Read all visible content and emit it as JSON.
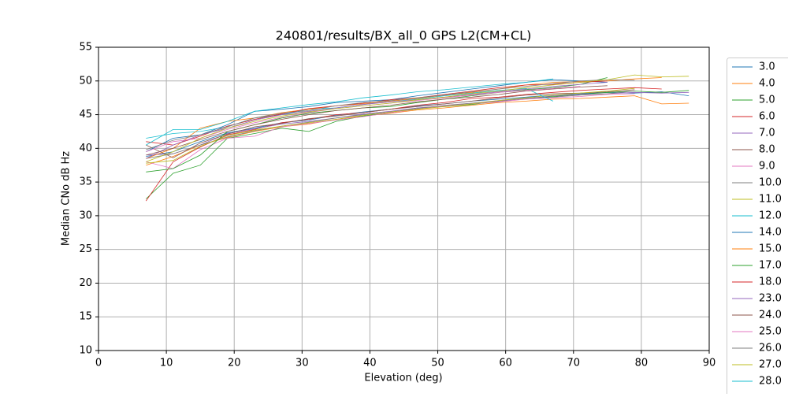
{
  "chart_data": {
    "type": "line",
    "title": "240801/results/BX_all_0 GPS L2(CM+CL)",
    "xlabel": "Elevation (deg)",
    "ylabel": "Median CNo dB Hz",
    "xlim": [
      0,
      90
    ],
    "ylim": [
      10,
      55
    ],
    "xticks": [
      0,
      10,
      20,
      30,
      40,
      50,
      60,
      70,
      80,
      90
    ],
    "yticks": [
      10,
      15,
      20,
      25,
      30,
      35,
      40,
      45,
      50,
      55
    ],
    "grid": true,
    "legend": "right",
    "x": [
      7,
      11,
      15,
      19,
      23,
      27,
      31,
      35,
      39,
      43,
      47,
      51,
      55,
      59,
      63,
      67,
      71,
      75,
      79,
      83,
      87
    ],
    "series": [
      {
        "name": "3.0",
        "color": "#1f77b4",
        "values": [
          38.8,
          39.5,
          41,
          42.3,
          43,
          43.8,
          44.2,
          44.9,
          45.4,
          45.8,
          46.3,
          46.6,
          47,
          47.3,
          47.6,
          47.9,
          48.1,
          48.3,
          48.2,
          48.4,
          47.8
        ]
      },
      {
        "name": "4.0",
        "color": "#ff7f0e",
        "values": [
          37.5,
          38.8,
          40.5,
          41.6,
          42.5,
          43.2,
          43.6,
          44.3,
          44.8,
          45.2,
          45.7,
          46,
          46.4,
          46.8,
          47,
          47.3,
          47.4,
          47.6,
          47.8,
          46.6,
          46.7
        ]
      },
      {
        "name": "5.0",
        "color": "#2ca02c",
        "values": [
          32.5,
          36.3,
          37.5,
          41.5,
          42.2,
          43,
          42.5,
          44,
          44.8,
          45.3,
          46,
          46.2,
          46.5,
          47,
          47.4,
          47.7,
          48,
          48.3,
          48.5,
          48.3,
          48.6
        ]
      },
      {
        "name": "6.0",
        "color": "#d62728",
        "values": [
          32.2,
          38,
          40.2,
          42,
          42.8,
          43.8,
          44.3,
          45,
          45.3,
          45.8,
          46.4,
          46.8,
          47.4,
          47.6,
          48,
          48.3,
          48.6,
          48.8,
          49,
          48.8,
          null
        ]
      },
      {
        "name": "7.0",
        "color": "#9467bd",
        "values": [
          39,
          39.2,
          40.5,
          42.2,
          42.9,
          43.6,
          44,
          44.5,
          45.1,
          45.5,
          46,
          46.3,
          46.7,
          47,
          47.4,
          47.8,
          48,
          48.1,
          48.3,
          48.2,
          48.3
        ]
      },
      {
        "name": "8.0",
        "color": "#8c564b",
        "values": [
          40.5,
          38.6,
          40.8,
          42.1,
          43.2,
          43.7,
          44.4,
          44.8,
          45.3,
          45.8,
          46.2,
          46.6,
          47,
          47.5,
          47.9,
          48.1,
          48.2,
          48.4,
          48.7,
          null,
          null
        ]
      },
      {
        "name": "9.0",
        "color": "#e377c2",
        "values": [
          38,
          37,
          39.8,
          41.5,
          41.8,
          43.2,
          43.7,
          44.2,
          44.7,
          45.3,
          45.8,
          46.3,
          46.6,
          46.9,
          47.3,
          47.5,
          47.7,
          48,
          48.1,
          null,
          null
        ]
      },
      {
        "name": "10.0",
        "color": "#7f7f7f",
        "values": [
          38.5,
          39.2,
          40.5,
          41.7,
          42.6,
          43.3,
          43.9,
          44.5,
          45,
          45.4,
          45.9,
          46.4,
          46.7,
          47.1,
          47.4,
          47.6,
          47.9,
          48.1,
          48.5,
          null,
          null
        ]
      },
      {
        "name": "11.0",
        "color": "#bcbd22",
        "values": [
          37.8,
          38.2,
          40.3,
          41.9,
          42.7,
          43.3,
          43.8,
          44.3,
          44.9,
          45.4,
          45.8,
          46.2,
          46.6,
          47.1,
          47.5,
          47.9,
          48.2,
          48.5,
          48.9,
          null,
          null
        ]
      },
      {
        "name": "12.0",
        "color": "#17becf",
        "values": [
          41.5,
          42.2,
          42.5,
          43.2,
          44.5,
          45,
          45.8,
          46,
          46.5,
          47,
          47.3,
          47.8,
          48.2,
          48.6,
          48.9,
          47,
          null,
          null,
          null,
          null,
          null
        ]
      },
      {
        "name": "14.0",
        "color": "#1f77b4",
        "values": [
          39.5,
          41.5,
          42,
          43.5,
          45.5,
          45.8,
          46.2,
          46.8,
          47,
          47.2,
          47.8,
          48.3,
          48.8,
          49.3,
          49.8,
          50.2,
          50,
          49.8,
          null,
          null,
          null
        ]
      },
      {
        "name": "15.0",
        "color": "#ff7f0e",
        "values": [
          38.5,
          40,
          43,
          44,
          44.5,
          45.3,
          45.8,
          46.3,
          46.6,
          47,
          47.4,
          47.9,
          48.3,
          48.8,
          49.4,
          49.8,
          49.9,
          50,
          50.3,
          50.5,
          null
        ]
      },
      {
        "name": "17.0",
        "color": "#2ca02c",
        "values": [
          36.5,
          37,
          39,
          42.5,
          43.5,
          44.5,
          45.2,
          45.6,
          46,
          46.2,
          46.8,
          47.3,
          47.8,
          48.3,
          48.7,
          49,
          49.5,
          50.5,
          null,
          null,
          null
        ]
      },
      {
        "name": "18.0",
        "color": "#d62728",
        "values": [
          41,
          40.5,
          41.8,
          43.3,
          44.3,
          45.1,
          45.9,
          46.3,
          46.7,
          47.2,
          47.5,
          48,
          48.5,
          49,
          49.4,
          49.5,
          49.8,
          50,
          null,
          null,
          null
        ]
      },
      {
        "name": "23.0",
        "color": "#9467bd",
        "values": [
          38.5,
          40.5,
          42,
          43,
          44.2,
          45,
          45.5,
          46,
          46.5,
          46.9,
          47.2,
          47.6,
          48,
          48.4,
          48.8,
          49.2,
          49.5,
          49.8,
          null,
          null,
          null
        ]
      },
      {
        "name": "24.0",
        "color": "#8c564b",
        "values": [
          39,
          40,
          41.3,
          42.5,
          43.5,
          44.3,
          45,
          45.6,
          46,
          46.4,
          46.9,
          47.3,
          47.6,
          48,
          48.5,
          48.8,
          49.1,
          49.3,
          null,
          null,
          null
        ]
      },
      {
        "name": "25.0",
        "color": "#e377c2",
        "values": [
          39.5,
          41,
          41.5,
          42.8,
          43.8,
          44.6,
          45.3,
          45.9,
          46.3,
          46.7,
          47.1,
          47.5,
          47.9,
          48.3,
          48.6,
          48.9,
          49.2,
          null,
          null,
          null,
          null
        ]
      },
      {
        "name": "26.0",
        "color": "#7f7f7f",
        "values": [
          39.8,
          41.2,
          42,
          43.2,
          44.5,
          45.2,
          45.6,
          46.3,
          46.8,
          47.1,
          47.5,
          47.9,
          48.4,
          48.8,
          49.2,
          49.6,
          50,
          50.2,
          50.1,
          null,
          null
        ]
      },
      {
        "name": "27.0",
        "color": "#bcbd22",
        "values": [
          38,
          39.5,
          41.5,
          43,
          44,
          44.8,
          45.4,
          45.9,
          46.3,
          46.7,
          47.2,
          47.6,
          48.1,
          48.5,
          49,
          49.4,
          49.8,
          50.2,
          50.9,
          50.6,
          50.7
        ]
      },
      {
        "name": "28.0",
        "color": "#17becf",
        "values": [
          40.5,
          42.8,
          42.8,
          44,
          45.5,
          46,
          46.5,
          46.9,
          47.5,
          47.9,
          48.4,
          48.7,
          49.1,
          49.5,
          49.8,
          50.3,
          null,
          null,
          null,
          null,
          null
        ]
      }
    ]
  }
}
